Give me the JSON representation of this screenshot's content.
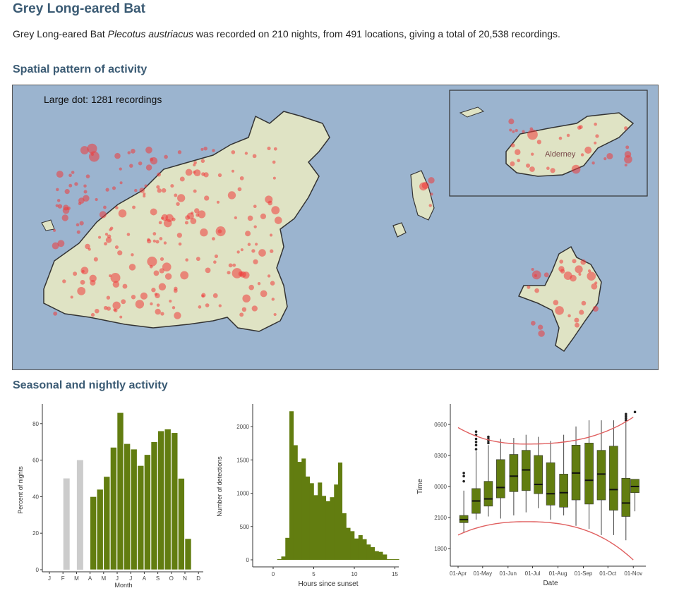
{
  "title": "Grey Long-eared Bat",
  "intro": {
    "pre": "Grey Long-eared Bat ",
    "species": "Plecotus austriacus",
    "post": " was recorded on 210 nights, from 491 locations, giving a total of 20,538 recordings."
  },
  "sections": {
    "spatial": "Spatial pattern of activity",
    "seasonal": "Seasonal and nightly activity"
  },
  "map": {
    "legend": "Large dot: 1281 recordings",
    "inset_label": "Alderney",
    "colors": {
      "sea": "#9bb4cf",
      "land": "#dfe3c4",
      "dots": "#ee3b3b"
    }
  },
  "chart_data": [
    {
      "type": "bar",
      "xlabel": "Month",
      "ylabel": "Percent of nights",
      "ylim": [
        0,
        90
      ],
      "yticks": [
        0,
        20,
        40,
        60,
        80
      ],
      "categories": [
        "J",
        "F",
        "M",
        "A",
        "M",
        "J",
        "J",
        "A",
        "S",
        "O",
        "N",
        "D"
      ],
      "bars": [
        {
          "month": 2,
          "value": 50,
          "color": "#cccccc"
        },
        {
          "month": 3,
          "value": 60,
          "color": "#cccccc"
        }
      ],
      "series_half_month": {
        "start_month": 4,
        "color": "#627d10",
        "values": [
          40,
          44,
          51,
          67,
          86,
          69,
          66,
          57,
          63,
          70,
          76,
          77,
          75,
          50,
          17
        ]
      }
    },
    {
      "type": "bar",
      "subtype": "histogram",
      "xlabel": "Hours since sunset",
      "ylabel": "Number of detections",
      "xlim": [
        -2,
        15.5
      ],
      "ylim": [
        0,
        2300
      ],
      "xticks": [
        0,
        5,
        10,
        15
      ],
      "yticks": [
        0,
        500,
        1000,
        1500,
        2000
      ],
      "bin_width": 0.5,
      "bin_start": 0.5,
      "color": "#627d10",
      "values": [
        10,
        50,
        330,
        2230,
        1720,
        1470,
        1520,
        1250,
        1150,
        970,
        1160,
        960,
        880,
        940,
        1130,
        1460,
        700,
        480,
        430,
        320,
        370,
        310,
        230,
        190,
        130,
        120,
        80,
        10,
        10,
        10
      ]
    },
    {
      "type": "boxplot",
      "xlabel": "Date",
      "ylabel": "Time",
      "xticks": [
        "01-Apr",
        "01-May",
        "01-Jun",
        "01-Jul",
        "01-Aug",
        "01-Sep",
        "01-Oct",
        "01-Nov"
      ],
      "yticks": [
        {
          "hour": 18,
          "label": "1800"
        },
        {
          "hour": 21,
          "label": "2100"
        },
        {
          "hour": 24,
          "label": "0000"
        },
        {
          "hour": 27,
          "label": "0300"
        },
        {
          "hour": 30,
          "label": "0600"
        }
      ],
      "color": "#627d10",
      "curve_color": "#e06060",
      "boxes": [
        {
          "date": "08-Apr",
          "lo": 19.6,
          "q1": 20.5,
          "med": 20.8,
          "q3": 21.2,
          "hi": 23.6,
          "out": [
            24.5,
            25.0,
            25.3
          ]
        },
        {
          "date": "23-Apr",
          "lo": 20.8,
          "q1": 21.4,
          "med": 22.6,
          "q3": 23.8,
          "hi": 27.4,
          "out": [
            27.6,
            28.0,
            28.3,
            28.6,
            29.0,
            29.3
          ]
        },
        {
          "date": "08-May",
          "lo": 21.1,
          "q1": 22.1,
          "med": 22.8,
          "q3": 24.5,
          "hi": 28.0,
          "out": [
            28.2,
            28.4,
            28.6,
            28.8
          ]
        },
        {
          "date": "23-May",
          "lo": 20.9,
          "q1": 22.9,
          "med": 23.9,
          "q3": 26.6,
          "hi": 28.6,
          "out": []
        },
        {
          "date": "08-Jun",
          "lo": 21.2,
          "q1": 23.5,
          "med": 25.0,
          "q3": 27.1,
          "hi": 28.7,
          "out": []
        },
        {
          "date": "23-Jun",
          "lo": 21.5,
          "q1": 23.6,
          "med": 25.6,
          "q3": 27.5,
          "hi": 29.0,
          "out": []
        },
        {
          "date": "08-Jul",
          "lo": 21.9,
          "q1": 23.3,
          "med": 24.2,
          "q3": 27.0,
          "hi": 28.8,
          "out": []
        },
        {
          "date": "23-Jul",
          "lo": 20.8,
          "q1": 22.2,
          "med": 23.3,
          "q3": 26.3,
          "hi": 28.4,
          "out": []
        },
        {
          "date": "08-Aug",
          "lo": 21.2,
          "q1": 22.0,
          "med": 23.4,
          "q3": 25.2,
          "hi": 29.0,
          "out": []
        },
        {
          "date": "23-Aug",
          "lo": 20.2,
          "q1": 22.7,
          "med": 25.3,
          "q3": 28.0,
          "hi": 29.8,
          "out": []
        },
        {
          "date": "08-Sep",
          "lo": 19.9,
          "q1": 22.3,
          "med": 24.6,
          "q3": 28.2,
          "hi": 30.4,
          "out": []
        },
        {
          "date": "23-Sep",
          "lo": 19.3,
          "q1": 22.7,
          "med": 25.2,
          "q3": 27.5,
          "hi": 30.4,
          "out": []
        },
        {
          "date": "08-Oct",
          "lo": 19.3,
          "q1": 21.7,
          "med": 23.7,
          "q3": 27.9,
          "hi": 30.4,
          "out": []
        },
        {
          "date": "23-Oct",
          "lo": 18.8,
          "q1": 21.1,
          "med": 22.4,
          "q3": 24.8,
          "hi": 30.3,
          "out": [
            30.4,
            30.6,
            30.8,
            31.0
          ]
        },
        {
          "date": "03-Nov",
          "lo": 21.6,
          "q1": 23.4,
          "med": 24.0,
          "q3": 24.7,
          "hi": 24.7,
          "out": [
            31.2
          ]
        }
      ],
      "sunset": [
        {
          "date": "01-Apr",
          "hour": 19.3
        },
        {
          "date": "23-Jun",
          "hour": 20.6
        },
        {
          "date": "01-Nov",
          "hour": 16.9
        }
      ],
      "sunrise": [
        {
          "date": "01-Apr",
          "hour": 29.7
        },
        {
          "date": "23-Jun",
          "hour": 28.1
        },
        {
          "date": "01-Nov",
          "hour": 30.7
        }
      ]
    }
  ]
}
